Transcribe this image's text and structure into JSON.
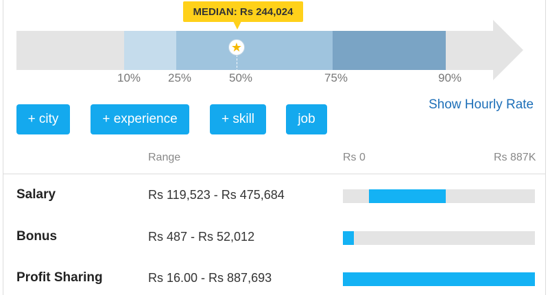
{
  "median": {
    "label": "MEDIAN: Rs 244,024",
    "icon": "star-icon"
  },
  "percentiles": [
    {
      "label": "10%"
    },
    {
      "label": "25%"
    },
    {
      "label": "50%"
    },
    {
      "label": "75%"
    },
    {
      "label": "90%"
    }
  ],
  "filters": {
    "city": "+ city",
    "experience": "+ experience",
    "skill": "+ skill",
    "job": "job"
  },
  "hourly_link": "Show Hourly Rate",
  "table": {
    "range_header": "Range",
    "scale_min": "Rs 0",
    "scale_max": "Rs 887K",
    "scale_max_value": 887000,
    "rows": [
      {
        "label": "Salary",
        "range": "Rs 119,523 - Rs 475,684",
        "low": 119523,
        "high": 475684
      },
      {
        "label": "Bonus",
        "range": "Rs 487 - Rs 52,012",
        "low": 487,
        "high": 52012
      },
      {
        "label": "Profit Sharing",
        "range": "Rs 16.00 - Rs 887,693",
        "low": 16,
        "high": 887693
      }
    ]
  },
  "colors": {
    "accent": "#14a9ee",
    "bar_fill": "#14b2f4",
    "badge": "#ffd11a",
    "link": "#1d6fb8"
  }
}
